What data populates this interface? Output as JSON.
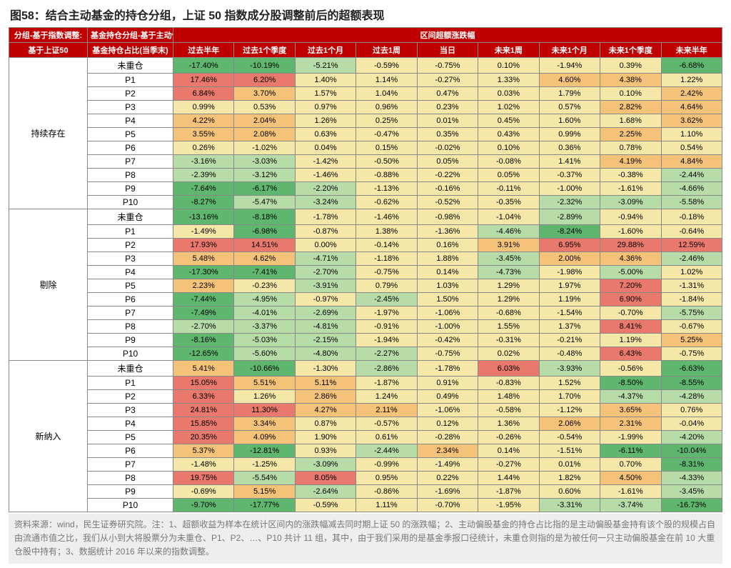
{
  "title": "图58：结合主动基金的持仓分组，上证 50 指数成分股调整前后的超额表现",
  "header": {
    "row1_col0": "分组-基于指数调整:",
    "row1_col1": "基金持仓分组-基于主动偏股",
    "row1_span": "区间超额涨跌幅",
    "row2_col0": "基于上证50",
    "row2_col1": "基金持仓占比(当季末)",
    "cols": [
      "过去半年",
      "过去1个季度",
      "过去1个月",
      "过去1周",
      "当日",
      "未来1周",
      "未来1个月",
      "未来1个季度",
      "未来半年"
    ]
  },
  "color": {
    "neg": "#5fb66f",
    "negMid": "#b8dca8",
    "flat": "#f4e7a7",
    "posMid": "#f5c27a",
    "pos": "#e9786d"
  },
  "groups": [
    {
      "name": "持续存在",
      "rows": [
        {
          "label": "未重仓",
          "v": [
            -17.4,
            -10.19,
            -5.21,
            -0.59,
            -0.75,
            0.1,
            -1.94,
            0.39,
            -6.68
          ]
        },
        {
          "label": "P1",
          "v": [
            17.46,
            6.2,
            1.4,
            1.14,
            -0.27,
            1.33,
            4.6,
            4.38,
            1.22
          ]
        },
        {
          "label": "P2",
          "v": [
            6.84,
            3.7,
            1.57,
            1.04,
            0.47,
            0.03,
            1.79,
            0.1,
            2.42
          ]
        },
        {
          "label": "P3",
          "v": [
            0.99,
            0.53,
            0.97,
            0.96,
            0.23,
            1.02,
            0.57,
            2.82,
            4.64
          ]
        },
        {
          "label": "P4",
          "v": [
            4.22,
            2.04,
            1.26,
            0.25,
            0.01,
            0.45,
            1.6,
            1.68,
            3.62
          ]
        },
        {
          "label": "P5",
          "v": [
            3.55,
            2.08,
            0.63,
            -0.47,
            0.35,
            0.43,
            0.99,
            2.25,
            1.1
          ]
        },
        {
          "label": "P6",
          "v": [
            0.26,
            -1.02,
            0.04,
            0.15,
            -0.02,
            0.1,
            0.36,
            0.78,
            0.54
          ]
        },
        {
          "label": "P7",
          "v": [
            -3.16,
            -3.03,
            -1.42,
            -0.5,
            0.05,
            -0.08,
            1.41,
            4.19,
            4.84
          ]
        },
        {
          "label": "P8",
          "v": [
            -2.39,
            -3.12,
            -1.46,
            -0.88,
            -0.22,
            0.05,
            -0.37,
            -0.38,
            -2.44
          ]
        },
        {
          "label": "P9",
          "v": [
            -7.64,
            -6.17,
            -2.2,
            -1.13,
            -0.16,
            -0.11,
            -1.0,
            -1.61,
            -4.66
          ]
        },
        {
          "label": "P10",
          "v": [
            -8.27,
            -5.47,
            -3.24,
            -0.62,
            -0.52,
            -0.35,
            -2.32,
            -3.09,
            -5.58
          ]
        }
      ]
    },
    {
      "name": "剔除",
      "rows": [
        {
          "label": "未重仓",
          "v": [
            -13.16,
            -8.18,
            -1.78,
            -1.46,
            -0.98,
            -1.04,
            -2.89,
            -0.94,
            -0.18
          ]
        },
        {
          "label": "P1",
          "v": [
            -1.49,
            -6.98,
            -0.87,
            1.38,
            -1.36,
            -4.46,
            -8.24,
            -1.6,
            -0.64
          ]
        },
        {
          "label": "P2",
          "v": [
            17.93,
            14.51,
            0.0,
            -0.14,
            0.16,
            3.91,
            6.95,
            29.88,
            12.59
          ]
        },
        {
          "label": "P3",
          "v": [
            5.48,
            4.62,
            -4.71,
            -1.18,
            1.88,
            -3.45,
            2.0,
            4.36,
            -2.46
          ]
        },
        {
          "label": "P4",
          "v": [
            -17.3,
            -7.41,
            -2.7,
            -0.75,
            0.14,
            -4.73,
            -1.98,
            -5.0,
            1.02
          ]
        },
        {
          "label": "P5",
          "v": [
            2.23,
            -0.23,
            -3.91,
            0.79,
            1.03,
            1.29,
            1.97,
            7.2,
            -1.31
          ]
        },
        {
          "label": "P6",
          "v": [
            -7.44,
            -4.95,
            -0.97,
            -2.45,
            1.5,
            1.29,
            1.19,
            6.9,
            -1.84
          ]
        },
        {
          "label": "P7",
          "v": [
            -7.49,
            -4.01,
            -2.69,
            -1.97,
            -1.06,
            -0.68,
            -1.54,
            -0.7,
            -5.75
          ]
        },
        {
          "label": "P8",
          "v": [
            -2.7,
            -3.37,
            -4.81,
            -0.91,
            -1.0,
            1.55,
            1.37,
            8.41,
            -0.67
          ]
        },
        {
          "label": "P9",
          "v": [
            -8.16,
            -5.03,
            -2.15,
            -1.94,
            -0.42,
            -0.31,
            -0.21,
            1.19,
            5.25
          ]
        },
        {
          "label": "P10",
          "v": [
            -12.65,
            -5.6,
            -4.8,
            -2.27,
            -0.75,
            0.02,
            -0.48,
            6.43,
            -0.75
          ]
        }
      ]
    },
    {
      "name": "新纳入",
      "rows": [
        {
          "label": "未重仓",
          "v": [
            5.41,
            -10.66,
            -1.3,
            -2.86,
            -1.78,
            6.03,
            -3.93,
            -0.56,
            -6.63
          ]
        },
        {
          "label": "P1",
          "v": [
            15.05,
            5.51,
            5.11,
            -1.87,
            0.91,
            -0.83,
            1.52,
            -8.5,
            -8.55
          ]
        },
        {
          "label": "P2",
          "v": [
            6.33,
            1.26,
            2.86,
            1.24,
            0.49,
            1.48,
            1.7,
            -4.37,
            -4.28
          ]
        },
        {
          "label": "P3",
          "v": [
            24.81,
            11.3,
            4.27,
            2.11,
            -1.06,
            -0.58,
            -1.12,
            3.65,
            0.76
          ]
        },
        {
          "label": "P4",
          "v": [
            15.85,
            3.34,
            0.87,
            -0.57,
            0.12,
            1.36,
            2.06,
            2.31,
            -0.04
          ]
        },
        {
          "label": "P5",
          "v": [
            20.35,
            4.09,
            1.9,
            0.61,
            -0.28,
            -0.26,
            -0.54,
            -1.99,
            -4.2
          ]
        },
        {
          "label": "P6",
          "v": [
            5.37,
            -12.81,
            0.93,
            -2.44,
            2.34,
            0.14,
            -1.51,
            -6.11,
            -10.04
          ]
        },
        {
          "label": "P7",
          "v": [
            -1.48,
            -1.25,
            -3.09,
            -0.99,
            -1.49,
            -0.27,
            0.01,
            0.7,
            -8.31
          ]
        },
        {
          "label": "P8",
          "v": [
            19.75,
            -5.54,
            8.05,
            0.95,
            0.22,
            1.44,
            1.82,
            4.5,
            -4.33
          ]
        },
        {
          "label": "P9",
          "v": [
            -0.69,
            5.15,
            -2.64,
            -0.86,
            -1.69,
            -1.87,
            0.6,
            -1.61,
            -3.45
          ]
        },
        {
          "label": "P10",
          "v": [
            -9.7,
            -17.77,
            -0.59,
            1.11,
            -0.7,
            -1.95,
            -3.31,
            -3.74,
            -16.73
          ]
        }
      ]
    }
  ],
  "thresholds": [
    -6,
    -2,
    2,
    6
  ],
  "footer": "资料来源：wind，民生证券研究院。注：1、超额收益为样本在统计区间内的涨跌幅减去同时期上证 50 的涨跌幅；2、主动偏股基金的持仓占比指的是主动偏股基金持有该个股的规模占自由流通市值之比，我们从小到大将股票分为未重仓、P1、P2、…、P10 共计 11 组，其中，由于我们采用的是基金季报口径统计，未重仓则指的是为被任何一只主动偏股基金在前 10 大重仓股中持有；3、数据统计 2016 年以来的指数调整。"
}
